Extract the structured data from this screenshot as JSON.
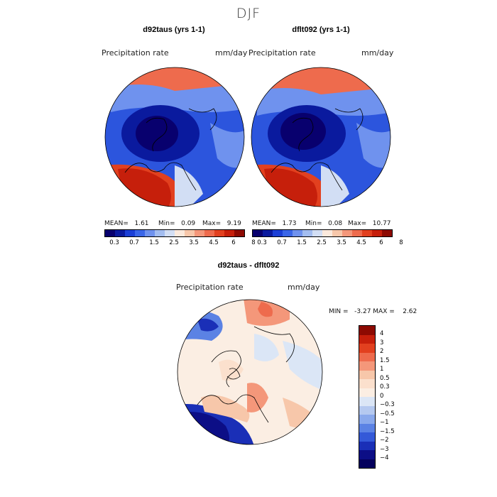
{
  "season": "DJF",
  "panel_left": {
    "title": "d92taus (yrs 1-1)",
    "variable": "Precipitation rate",
    "units": "mm/day",
    "stats": {
      "mean_label": "MEAN=",
      "mean": "1.61",
      "min_label": "Min=",
      "min": "0.09",
      "max_label": "Max=",
      "max": "9.19"
    }
  },
  "panel_right": {
    "title": "dflt092 (yrs 1-1)",
    "variable": "Precipitation rate",
    "units": "mm/day",
    "stats": {
      "mean_label": "MEAN=",
      "mean": "1.73",
      "min_label": "Min=",
      "min": "0.08",
      "max_label": "Max=",
      "max": "10.77"
    }
  },
  "colorbar_top": {
    "labels": [
      "0.3",
      "0.7",
      "1.5",
      "2.5",
      "3.5",
      "4.5",
      "6",
      "8"
    ],
    "colors": [
      "#08006e",
      "#0a1a9e",
      "#1b3fd6",
      "#3a66e8",
      "#6f92ee",
      "#a3bdf0",
      "#d2def4",
      "#fbe9dc",
      "#f7c7aa",
      "#f4977a",
      "#ee6b4d",
      "#e2401f",
      "#c61f0b",
      "#8d0a02"
    ]
  },
  "panel_diff": {
    "title": "d92taus - dflt092",
    "variable": "Precipitation rate",
    "units": "mm/day",
    "minmax": "MIN =   -3.27 MAX =    2.62"
  },
  "colorbar_diff": {
    "labels": [
      "4",
      "3",
      "2",
      "1.5",
      "1",
      "0.5",
      "0.3",
      "0",
      "−0.3",
      "−0.5",
      "−1",
      "−1.5",
      "−2",
      "−3",
      "−4"
    ],
    "colors": [
      "#8d0a02",
      "#c61f0b",
      "#e2401f",
      "#ee6b4d",
      "#f4977a",
      "#f7c7aa",
      "#fbe0cd",
      "#fbeee3",
      "#dbe6f6",
      "#b5c9f0",
      "#8aa9ec",
      "#5b82e4",
      "#3459d8",
      "#1a2fb7",
      "#0c0e86",
      "#04005d"
    ]
  }
}
